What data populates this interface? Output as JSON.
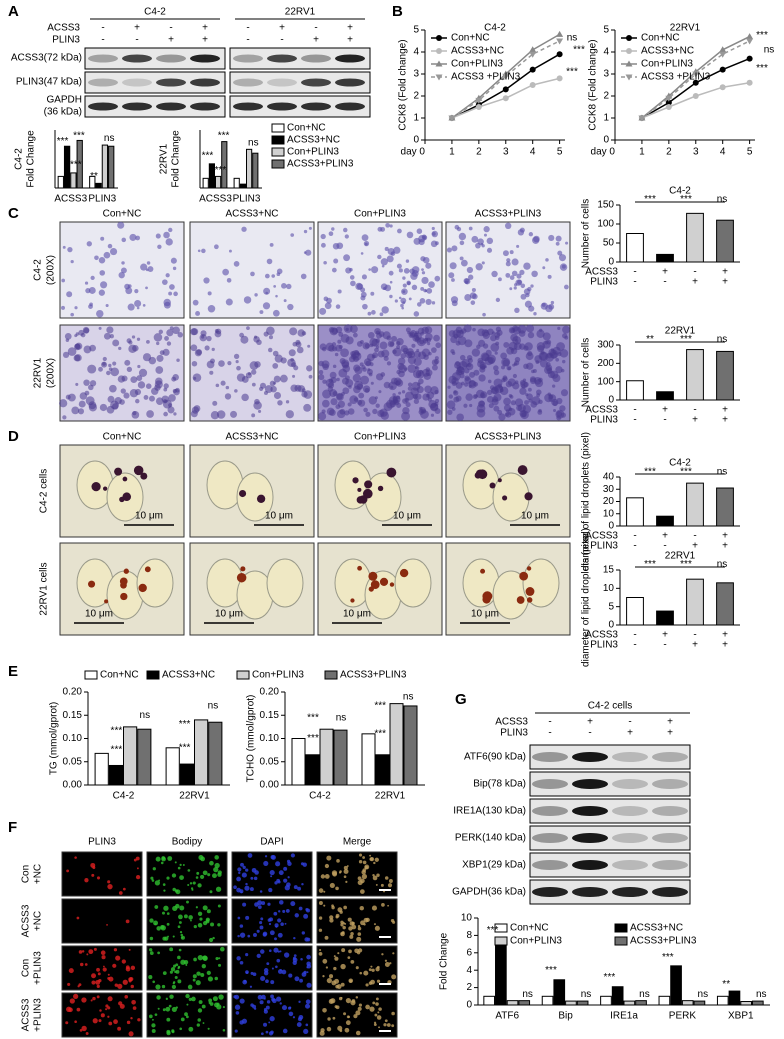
{
  "figure": {
    "panel_letters": [
      "A",
      "B",
      "C",
      "D",
      "E",
      "F",
      "G"
    ],
    "a_blot": {
      "cell_lines": [
        "C4-2",
        "22RV1"
      ],
      "rows": [
        {
          "name": "ACSS3",
          "marks": [
            "-",
            "+",
            "-",
            "+"
          ]
        },
        {
          "name": "PLIN3",
          "marks": [
            "-",
            "-",
            "+",
            "+"
          ]
        }
      ],
      "bands": [
        [
          "ACSS3(72 kDa)"
        ],
        [
          "PLIN3(47 kDa)"
        ],
        [
          "GAPDH",
          "(36 kDa)"
        ]
      ]
    },
    "c_images": {
      "columns": [
        "Con+NC",
        "ACSS3+NC",
        "Con+PLIN3",
        "ACSS3+PLIN3"
      ],
      "rows": [
        [
          "C4-2",
          "(200X)"
        ],
        [
          "22RV1",
          "(200X)"
        ]
      ]
    },
    "d_images": {
      "columns": [
        "Con+NC",
        "ACSS3+NC",
        "Con+PLIN3",
        "ACSS3+PLIN3"
      ],
      "rows": [
        "C4-2 cells",
        "22RV1 cells"
      ],
      "scale": "10 μm"
    },
    "f_images": {
      "columns": [
        "PLIN3",
        "Bodipy",
        "DAPI",
        "Merge"
      ],
      "rows": [
        [
          "Con",
          "+NC"
        ],
        [
          "ACSS3",
          "+NC"
        ],
        [
          "Con",
          "+PLIN3"
        ],
        [
          "ACSS3",
          "+PLIN3"
        ]
      ]
    },
    "g_blot": {
      "title": "C4-2 cells",
      "rows": [
        {
          "name": "ACSS3",
          "marks": [
            "-",
            "+",
            "-",
            "+"
          ]
        },
        {
          "name": "PLIN3",
          "marks": [
            "-",
            "-",
            "+",
            "+"
          ]
        }
      ],
      "bands": [
        "ATF6(90 kDa)",
        "Bip(78 kDa)",
        "IRE1A(130 kDa)",
        "PERK(140 kDa)",
        "XBP1(29 kDa)",
        "GAPDH(36 kDa)"
      ]
    }
  },
  "chart_data": [
    {
      "type": "bar",
      "ylabel": [
        "C4-2",
        "Fold Change"
      ],
      "categories": [
        "ACSS3",
        "PLIN3"
      ],
      "ylim": [
        0,
        5
      ],
      "series": [
        {
          "name": "Con+NC",
          "color": "#ffffff",
          "values": [
            1,
            1
          ]
        },
        {
          "name": "ACSS3+NC",
          "color": "#000000",
          "values": [
            3.6,
            0.4
          ]
        },
        {
          "name": "Con+PLIN3",
          "color": "#d0d0d0",
          "values": [
            1.3,
            3.7
          ]
        },
        {
          "name": "ACSS3+PLIN3",
          "color": "#707070",
          "values": [
            4.1,
            3.6
          ]
        }
      ],
      "annotations": [
        "***",
        "***",
        "***",
        "**",
        "ns"
      ]
    },
    {
      "type": "bar",
      "ylabel": [
        "22RV1",
        "Fold Change"
      ],
      "categories": [
        "ACSS3",
        "PLIN3"
      ],
      "ylim": [
        0,
        6
      ],
      "legend": "right",
      "series": [
        {
          "name": "Con+NC",
          "color": "#ffffff",
          "values": [
            1,
            1
          ]
        },
        {
          "name": "ACSS3+NC",
          "color": "#000000",
          "values": [
            2.5,
            0.4
          ]
        },
        {
          "name": "Con+PLIN3",
          "color": "#d0d0d0",
          "values": [
            1.2,
            4
          ]
        },
        {
          "name": "ACSS3+PLIN3",
          "color": "#707070",
          "values": [
            4.8,
            3.6
          ]
        }
      ],
      "annotations": [
        "***",
        "***",
        "***",
        "ns"
      ]
    },
    {
      "type": "line",
      "title": "C4-2",
      "ylabel": "CCK8 (Fold change)",
      "x": [
        1,
        2,
        3,
        4,
        5
      ],
      "xlim": [
        0,
        5.2
      ],
      "xticks": [
        {
          "value": 0,
          "label": "day 0"
        },
        1,
        2,
        3,
        4,
        5
      ],
      "ylim": [
        0,
        5
      ],
      "yticks": [
        0,
        1,
        2,
        3,
        4,
        5
      ],
      "legend": "top-left",
      "series": [
        {
          "name": "Con+NC",
          "color": "#000000",
          "marker": "circle",
          "values": [
            1,
            1.6,
            2.3,
            3.2,
            3.9
          ]
        },
        {
          "name": "ACSS3+NC",
          "color": "#bbbbbb",
          "marker": "circle",
          "values": [
            1,
            1.5,
            1.9,
            2.5,
            2.8
          ]
        },
        {
          "name": "Con+PLIN3",
          "color": "#888888",
          "marker": "triangle",
          "values": [
            1,
            1.9,
            3.0,
            4.1,
            4.8
          ]
        },
        {
          "name": "ACSS3 +PLIN3",
          "color": "#999999",
          "marker": "triangle-down",
          "dashed": true,
          "values": [
            1,
            1.8,
            2.9,
            3.9,
            4.5
          ]
        }
      ],
      "annotations": [
        "ns",
        "***",
        "***"
      ]
    },
    {
      "type": "line",
      "title": "22RV1",
      "ylabel": "CCK8 (Fold change)",
      "x": [
        1,
        2,
        3,
        4,
        5
      ],
      "xlim": [
        0,
        5.2
      ],
      "xticks": [
        {
          "value": 0,
          "label": "day 0"
        },
        1,
        2,
        3,
        4,
        5
      ],
      "ylim": [
        0,
        5
      ],
      "yticks": [
        0,
        1,
        2,
        3,
        4,
        5
      ],
      "legend": "top-left",
      "series": [
        {
          "name": "Con+NC",
          "color": "#000000",
          "marker": "circle",
          "values": [
            1,
            1.7,
            2.6,
            3.2,
            3.7
          ]
        },
        {
          "name": "ACSS3+NC",
          "color": "#bbbbbb",
          "marker": "circle",
          "values": [
            1,
            1.5,
            2.0,
            2.4,
            2.6
          ]
        },
        {
          "name": "Con+PLIN3",
          "color": "#888888",
          "marker": "triangle",
          "values": [
            1,
            2.0,
            3.1,
            4.1,
            4.7
          ]
        },
        {
          "name": "ACSS3 +PLIN3",
          "color": "#999999",
          "marker": "triangle-down",
          "dashed": true,
          "values": [
            1,
            1.9,
            3.0,
            3.9,
            4.5
          ]
        }
      ],
      "annotations": [
        "***",
        "ns",
        "***"
      ]
    },
    {
      "type": "bar",
      "title": "C4-2",
      "ylabel": "Number of cells",
      "values": [
        75,
        20,
        128,
        110
      ],
      "colors": [
        "#ffffff",
        "#000000",
        "#d0d0d0",
        "#707070"
      ],
      "ylim": [
        0,
        150
      ],
      "yticks": [
        0,
        50,
        100,
        150
      ],
      "conditions": [
        {
          "name": "ACSS3",
          "marks": [
            "-",
            "+",
            "-",
            "+"
          ]
        },
        {
          "name": "PLIN3",
          "marks": [
            "-",
            "-",
            "+",
            "+"
          ]
        }
      ],
      "annotations": [
        "***",
        "***",
        "ns"
      ]
    },
    {
      "type": "bar",
      "title": "22RV1",
      "ylabel": "Number of cells",
      "values": [
        105,
        45,
        275,
        265
      ],
      "colors": [
        "#ffffff",
        "#000000",
        "#d0d0d0",
        "#707070"
      ],
      "ylim": [
        0,
        300
      ],
      "yticks": [
        0,
        100,
        200,
        300
      ],
      "conditions": [
        {
          "name": "ACSS3",
          "marks": [
            "-",
            "+",
            "-",
            "+"
          ]
        },
        {
          "name": "PLIN3",
          "marks": [
            "-",
            "-",
            "+",
            "+"
          ]
        }
      ],
      "annotations": [
        "**",
        "***",
        "ns"
      ]
    },
    {
      "type": "bar",
      "title": "C4-2",
      "ylabel": "diameter of lipid droplets (pixel)",
      "values": [
        23,
        8,
        35,
        31
      ],
      "colors": [
        "#ffffff",
        "#000000",
        "#d0d0d0",
        "#707070"
      ],
      "ylim": [
        0,
        40
      ],
      "yticks": [
        0,
        10,
        20,
        30,
        40
      ],
      "conditions": [
        {
          "name": "ACSS3",
          "marks": [
            "-",
            "+",
            "-",
            "+"
          ]
        },
        {
          "name": "PLIN3",
          "marks": [
            "-",
            "-",
            "+",
            "+"
          ]
        }
      ],
      "annotations": [
        "***",
        "***",
        "ns"
      ]
    },
    {
      "type": "bar",
      "title": "22RV1",
      "ylabel": "diameter of lipid droplets (pixel)",
      "values": [
        7.5,
        3.8,
        12.5,
        11.5
      ],
      "colors": [
        "#ffffff",
        "#000000",
        "#d0d0d0",
        "#707070"
      ],
      "ylim": [
        0,
        15
      ],
      "yticks": [
        0,
        5,
        10,
        15
      ],
      "conditions": [
        {
          "name": "ACSS3",
          "marks": [
            "-",
            "+",
            "-",
            "+"
          ]
        },
        {
          "name": "PLIN3",
          "marks": [
            "-",
            "-",
            "+",
            "+"
          ]
        }
      ],
      "annotations": [
        "***",
        "***",
        "ns"
      ]
    },
    {
      "type": "bar",
      "ylabel": "TG (mmol/gprot)",
      "categories": [
        "C4-2",
        "22RV1"
      ],
      "ylim": [
        0,
        0.2
      ],
      "legend": "top",
      "yticks": [
        {
          "value": 0,
          "label": "0.00"
        },
        0.05,
        {
          "value": 0.1,
          "label": "0.10"
        },
        0.15,
        {
          "value": 0.2,
          "label": "0.20"
        }
      ],
      "series": [
        {
          "name": "Con+NC",
          "color": "#ffffff",
          "values": [
            0.068,
            0.08
          ]
        },
        {
          "name": "ACSS3+NC",
          "color": "#000000",
          "values": [
            0.042,
            0.045
          ]
        },
        {
          "name": "Con+PLIN3",
          "color": "#d0d0d0",
          "values": [
            0.125,
            0.14
          ]
        },
        {
          "name": "ACSS3+PLIN3",
          "color": "#707070",
          "values": [
            0.12,
            0.135
          ]
        }
      ],
      "annotations": [
        "***",
        "***",
        "ns",
        "***",
        "***",
        "ns"
      ]
    },
    {
      "type": "bar",
      "ylabel": "TCHO (mmol/gprot)",
      "categories": [
        "C4-2",
        "22RV1"
      ],
      "ylim": [
        0,
        0.2
      ],
      "yticks": [
        {
          "value": 0,
          "label": "0.00"
        },
        0.05,
        {
          "value": 0.1,
          "label": "0.10"
        },
        0.15,
        {
          "value": 0.2,
          "label": "0.20"
        }
      ],
      "series": [
        {
          "name": "Con+NC",
          "color": "#ffffff",
          "values": [
            0.1,
            0.11
          ]
        },
        {
          "name": "ACSS3+NC",
          "color": "#000000",
          "values": [
            0.065,
            0.065
          ]
        },
        {
          "name": "Con+PLIN3",
          "color": "#d0d0d0",
          "values": [
            0.12,
            0.175
          ]
        },
        {
          "name": "ACSS3+PLIN3",
          "color": "#707070",
          "values": [
            0.118,
            0.17
          ]
        }
      ],
      "annotations": [
        "***",
        "***",
        "ns",
        "***",
        "***",
        "ns"
      ]
    },
    {
      "type": "bar",
      "ylabel": "Fold Change",
      "categories": [
        "ATF6",
        "Bip",
        "IRE1a",
        "PERK",
        "XBP1"
      ],
      "ylim": [
        0,
        10
      ],
      "yticks": [
        0,
        2,
        4,
        6,
        8,
        10
      ],
      "legend": "two-column",
      "series": [
        {
          "name": "Con+NC",
          "color": "#ffffff",
          "values": [
            1,
            1,
            1,
            1,
            1
          ]
        },
        {
          "name": "ACSS3+NC",
          "color": "#000000",
          "values": [
            7,
            2.9,
            2.1,
            4.5,
            1.6
          ]
        },
        {
          "name": "Con+PLIN3",
          "color": "#d0d0d0",
          "values": [
            0.5,
            0.45,
            0.45,
            0.5,
            0.4
          ]
        },
        {
          "name": "ACSS3+PLIN3",
          "color": "#707070",
          "values": [
            0.5,
            0.45,
            0.5,
            0.45,
            0.45
          ]
        }
      ],
      "annotations": [
        "***",
        "ns",
        "***",
        "ns",
        "***",
        "ns",
        "***",
        "ns",
        "**",
        "ns"
      ]
    }
  ]
}
